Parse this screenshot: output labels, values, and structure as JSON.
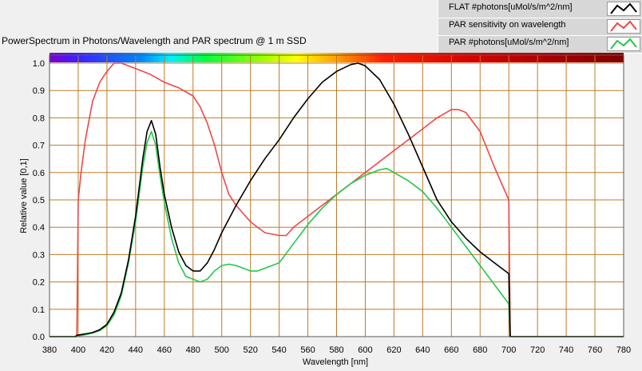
{
  "title": "PowerSpectrum in Photons/Wavelength and PAR spectrum @ 1 m SSD",
  "legend": [
    {
      "label": "FLAT #photons[uMol/s/m^2/nm]",
      "color": "#000000"
    },
    {
      "label": "PAR sensitivity on wavelength",
      "color": "#f04646"
    },
    {
      "label": "PAR #photons[uMol/s/m^2/nm]",
      "color": "#22c84a"
    }
  ],
  "colors": {
    "background": "#f0f0f0",
    "plot_area": "#ffffff",
    "grid": "#c07a2a",
    "spectrum_bar": "visible-spectrum-gradient"
  },
  "chart_data": {
    "type": "line",
    "title": "PowerSpectrum in Photons/Wavelength and PAR spectrum @ 1 m SSD",
    "xlabel": "Wavelength [nm]",
    "ylabel": "Relative value [0,1]",
    "xlim": [
      380,
      780
    ],
    "ylim": [
      0,
      1
    ],
    "xticks": [
      380,
      400,
      420,
      440,
      460,
      480,
      500,
      520,
      540,
      560,
      580,
      600,
      620,
      640,
      660,
      680,
      700,
      720,
      740,
      760,
      780
    ],
    "yticks": [
      0,
      0.1,
      0.2,
      0.3,
      0.4,
      0.5,
      0.6,
      0.7,
      0.8,
      0.9,
      1.0
    ],
    "ytick_labels": [
      "0.0",
      "0.1",
      "0.2",
      "0.3",
      "0.4",
      "0.5",
      "0.6",
      "0.7",
      "0.8",
      "0.9",
      "1.0"
    ],
    "grid": true,
    "legend_position": "top-right",
    "series": [
      {
        "name": "FLAT #photons[uMol/s/m^2/nm]",
        "color": "#000000",
        "x": [
          380,
          398,
          399,
          405,
          410,
          415,
          420,
          425,
          430,
          435,
          440,
          445,
          448,
          451,
          454,
          457,
          460,
          465,
          470,
          475,
          480,
          485,
          490,
          495,
          500,
          510,
          520,
          530,
          540,
          550,
          560,
          570,
          580,
          590,
          595,
          600,
          610,
          620,
          630,
          640,
          650,
          660,
          670,
          680,
          690,
          700,
          701,
          780
        ],
        "y": [
          0,
          0,
          0.005,
          0.01,
          0.015,
          0.025,
          0.045,
          0.09,
          0.16,
          0.28,
          0.44,
          0.65,
          0.75,
          0.79,
          0.74,
          0.62,
          0.52,
          0.4,
          0.31,
          0.26,
          0.24,
          0.24,
          0.27,
          0.32,
          0.38,
          0.48,
          0.57,
          0.65,
          0.72,
          0.8,
          0.87,
          0.93,
          0.97,
          0.995,
          1.0,
          0.99,
          0.94,
          0.85,
          0.74,
          0.62,
          0.5,
          0.42,
          0.36,
          0.31,
          0.27,
          0.23,
          0,
          0
        ]
      },
      {
        "name": "PAR sensitivity on wavelength",
        "color": "#f04646",
        "x": [
          380,
          399,
          400,
          402,
          405,
          410,
          415,
          420,
          425,
          430,
          435,
          440,
          450,
          460,
          470,
          480,
          485,
          490,
          495,
          500,
          505,
          510,
          515,
          520,
          530,
          540,
          545,
          550,
          560,
          570,
          580,
          590,
          600,
          610,
          620,
          630,
          640,
          650,
          660,
          665,
          670,
          680,
          690,
          700,
          701,
          780
        ],
        "y": [
          0,
          0,
          0.5,
          0.6,
          0.72,
          0.86,
          0.93,
          0.97,
          1.0,
          1.0,
          0.99,
          0.98,
          0.96,
          0.93,
          0.91,
          0.88,
          0.84,
          0.78,
          0.7,
          0.6,
          0.52,
          0.48,
          0.45,
          0.42,
          0.38,
          0.37,
          0.37,
          0.4,
          0.44,
          0.48,
          0.52,
          0.56,
          0.6,
          0.64,
          0.68,
          0.72,
          0.76,
          0.8,
          0.83,
          0.83,
          0.82,
          0.75,
          0.62,
          0.5,
          0,
          0
        ]
      },
      {
        "name": "PAR #photons[uMol/s/m^2/nm]",
        "color": "#22c84a",
        "x": [
          380,
          399,
          400,
          405,
          410,
          415,
          420,
          425,
          430,
          435,
          440,
          445,
          448,
          451,
          454,
          457,
          460,
          465,
          470,
          475,
          480,
          485,
          490,
          495,
          500,
          505,
          510,
          515,
          520,
          525,
          530,
          540,
          550,
          560,
          570,
          580,
          590,
          600,
          610,
          615,
          620,
          630,
          640,
          650,
          660,
          670,
          680,
          690,
          700,
          701,
          780
        ],
        "y": [
          0,
          0,
          0.003,
          0.007,
          0.013,
          0.022,
          0.04,
          0.08,
          0.15,
          0.27,
          0.42,
          0.62,
          0.71,
          0.75,
          0.7,
          0.59,
          0.49,
          0.36,
          0.27,
          0.22,
          0.21,
          0.2,
          0.21,
          0.24,
          0.26,
          0.265,
          0.26,
          0.25,
          0.24,
          0.24,
          0.25,
          0.27,
          0.34,
          0.41,
          0.47,
          0.52,
          0.56,
          0.59,
          0.61,
          0.615,
          0.6,
          0.57,
          0.53,
          0.47,
          0.4,
          0.33,
          0.26,
          0.19,
          0.12,
          0,
          0
        ]
      }
    ]
  }
}
